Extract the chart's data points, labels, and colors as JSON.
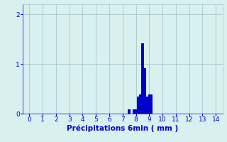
{
  "xlabel": "Précipitations 6min ( mm )",
  "bar_color": "#0000cc",
  "background_color": "#d8f0f0",
  "grid_color": "#a8c8c8",
  "axis_label_color": "#0000cc",
  "tick_color": "#0000cc",
  "xlim": [
    -0.5,
    14.5
  ],
  "ylim": [
    0,
    2.2
  ],
  "ytop": 2.2,
  "xticks": [
    0,
    1,
    2,
    3,
    4,
    5,
    6,
    7,
    8,
    9,
    10,
    11,
    12,
    13,
    14
  ],
  "yticks": [
    0,
    1,
    2
  ],
  "bar_width": 0.18,
  "bars": [
    {
      "x": 7.5,
      "height": 0.08
    },
    {
      "x": 7.83,
      "height": 0.08
    },
    {
      "x": 8.0,
      "height": 0.08
    },
    {
      "x": 8.17,
      "height": 0.35
    },
    {
      "x": 8.33,
      "height": 0.38
    },
    {
      "x": 8.5,
      "height": 1.42
    },
    {
      "x": 8.67,
      "height": 0.92
    },
    {
      "x": 8.83,
      "height": 0.35
    },
    {
      "x": 9.0,
      "height": 0.38
    },
    {
      "x": 9.17,
      "height": 0.38
    }
  ],
  "xlabel_fontsize": 7.5,
  "tick_fontsize": 6.5
}
